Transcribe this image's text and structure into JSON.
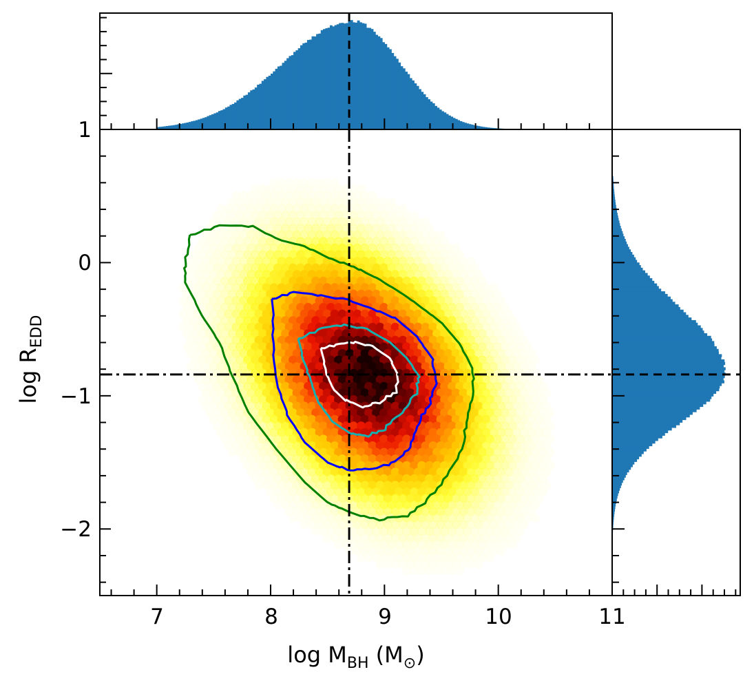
{
  "chart_data": {
    "type": "scatter",
    "subtype": "hexbin-density-with-marginal-histograms",
    "xlabel": {
      "main": "log M",
      "sub": "BH",
      "unit_open": " (M",
      "unit_sub": "⊙",
      "unit_close": ")"
    },
    "ylabel": {
      "main": "log R",
      "sub": "EDD"
    },
    "xlim": [
      6.5,
      11
    ],
    "ylim": [
      -2.5,
      1
    ],
    "x_ticks": [
      7,
      8,
      9,
      10,
      11
    ],
    "x_tick_labels": [
      "7",
      "8",
      "9",
      "10",
      "11"
    ],
    "y_ticks": [
      1,
      0,
      -1,
      -2
    ],
    "y_tick_labels": [
      "1",
      "0",
      "−1",
      "−2"
    ],
    "grid": false,
    "density": {
      "colormap": "hot_r",
      "center": [
        8.85,
        -0.85
      ],
      "sigma_x": 0.55,
      "sigma_y": 0.5,
      "correlation": -0.35
    },
    "median_lines": {
      "x": 8.69,
      "y": -0.84,
      "style": "dash-dot",
      "color": "#000000"
    },
    "contours": [
      {
        "name": "outer",
        "color": "#008000",
        "points": [
          [
            7.3,
            0.2
          ],
          [
            7.55,
            0.28
          ],
          [
            7.85,
            0.27
          ],
          [
            8.05,
            0.18
          ],
          [
            8.3,
            0.12
          ],
          [
            8.55,
            0.02
          ],
          [
            8.7,
            -0.02
          ],
          [
            8.9,
            -0.1
          ],
          [
            9.1,
            -0.2
          ],
          [
            9.3,
            -0.32
          ],
          [
            9.5,
            -0.45
          ],
          [
            9.65,
            -0.6
          ],
          [
            9.78,
            -0.8
          ],
          [
            9.78,
            -1.0
          ],
          [
            9.72,
            -1.2
          ],
          [
            9.68,
            -1.4
          ],
          [
            9.55,
            -1.6
          ],
          [
            9.38,
            -1.78
          ],
          [
            9.2,
            -1.9
          ],
          [
            8.95,
            -1.93
          ],
          [
            8.7,
            -1.88
          ],
          [
            8.5,
            -1.8
          ],
          [
            8.3,
            -1.65
          ],
          [
            8.05,
            -1.4
          ],
          [
            7.8,
            -1.12
          ],
          [
            7.65,
            -0.82
          ],
          [
            7.55,
            -0.6
          ],
          [
            7.4,
            -0.4
          ],
          [
            7.25,
            -0.15
          ],
          [
            7.25,
            0.0
          ],
          [
            7.3,
            0.2
          ]
        ]
      },
      {
        "name": "mid",
        "color": "#0000ff",
        "points": [
          [
            8.02,
            -0.28
          ],
          [
            8.2,
            -0.22
          ],
          [
            8.45,
            -0.25
          ],
          [
            8.68,
            -0.28
          ],
          [
            8.9,
            -0.35
          ],
          [
            9.1,
            -0.42
          ],
          [
            9.28,
            -0.55
          ],
          [
            9.42,
            -0.72
          ],
          [
            9.45,
            -0.9
          ],
          [
            9.4,
            -1.05
          ],
          [
            9.3,
            -1.2
          ],
          [
            9.22,
            -1.38
          ],
          [
            9.1,
            -1.5
          ],
          [
            8.9,
            -1.55
          ],
          [
            8.7,
            -1.56
          ],
          [
            8.5,
            -1.5
          ],
          [
            8.3,
            -1.35
          ],
          [
            8.15,
            -1.15
          ],
          [
            8.05,
            -0.9
          ],
          [
            8.02,
            -0.6
          ],
          [
            8.02,
            -0.28
          ]
        ]
      },
      {
        "name": "inner",
        "color": "#17b0b0",
        "points": [
          [
            8.25,
            -0.58
          ],
          [
            8.45,
            -0.49
          ],
          [
            8.65,
            -0.47
          ],
          [
            8.85,
            -0.5
          ],
          [
            9.05,
            -0.6
          ],
          [
            9.2,
            -0.72
          ],
          [
            9.3,
            -0.85
          ],
          [
            9.28,
            -0.98
          ],
          [
            9.15,
            -1.12
          ],
          [
            9.0,
            -1.25
          ],
          [
            8.85,
            -1.3
          ],
          [
            8.7,
            -1.28
          ],
          [
            8.55,
            -1.2
          ],
          [
            8.42,
            -1.05
          ],
          [
            8.35,
            -0.88
          ],
          [
            8.28,
            -0.72
          ],
          [
            8.25,
            -0.58
          ]
        ]
      },
      {
        "name": "core",
        "color": "#ffffff",
        "points": [
          [
            8.45,
            -0.65
          ],
          [
            8.6,
            -0.61
          ],
          [
            8.75,
            -0.6
          ],
          [
            8.9,
            -0.63
          ],
          [
            9.05,
            -0.72
          ],
          [
            9.12,
            -0.85
          ],
          [
            9.1,
            -0.97
          ],
          [
            8.95,
            -1.05
          ],
          [
            8.8,
            -1.08
          ],
          [
            8.65,
            -1.03
          ],
          [
            8.55,
            -0.95
          ],
          [
            8.48,
            -0.82
          ],
          [
            8.45,
            -0.65
          ]
        ]
      }
    ],
    "top_histogram": {
      "variable": "log M_BH",
      "color": "#1f77b4",
      "center": 8.72,
      "sigma_left": 0.62,
      "sigma_right": 0.42,
      "range": [
        7.0,
        10.2
      ]
    },
    "right_histogram": {
      "variable": "log R_EDD",
      "color": "#1f77b4",
      "center": -0.82,
      "sigma_up": 0.48,
      "sigma_down": 0.38,
      "range": [
        -2.3,
        0.65
      ]
    }
  }
}
